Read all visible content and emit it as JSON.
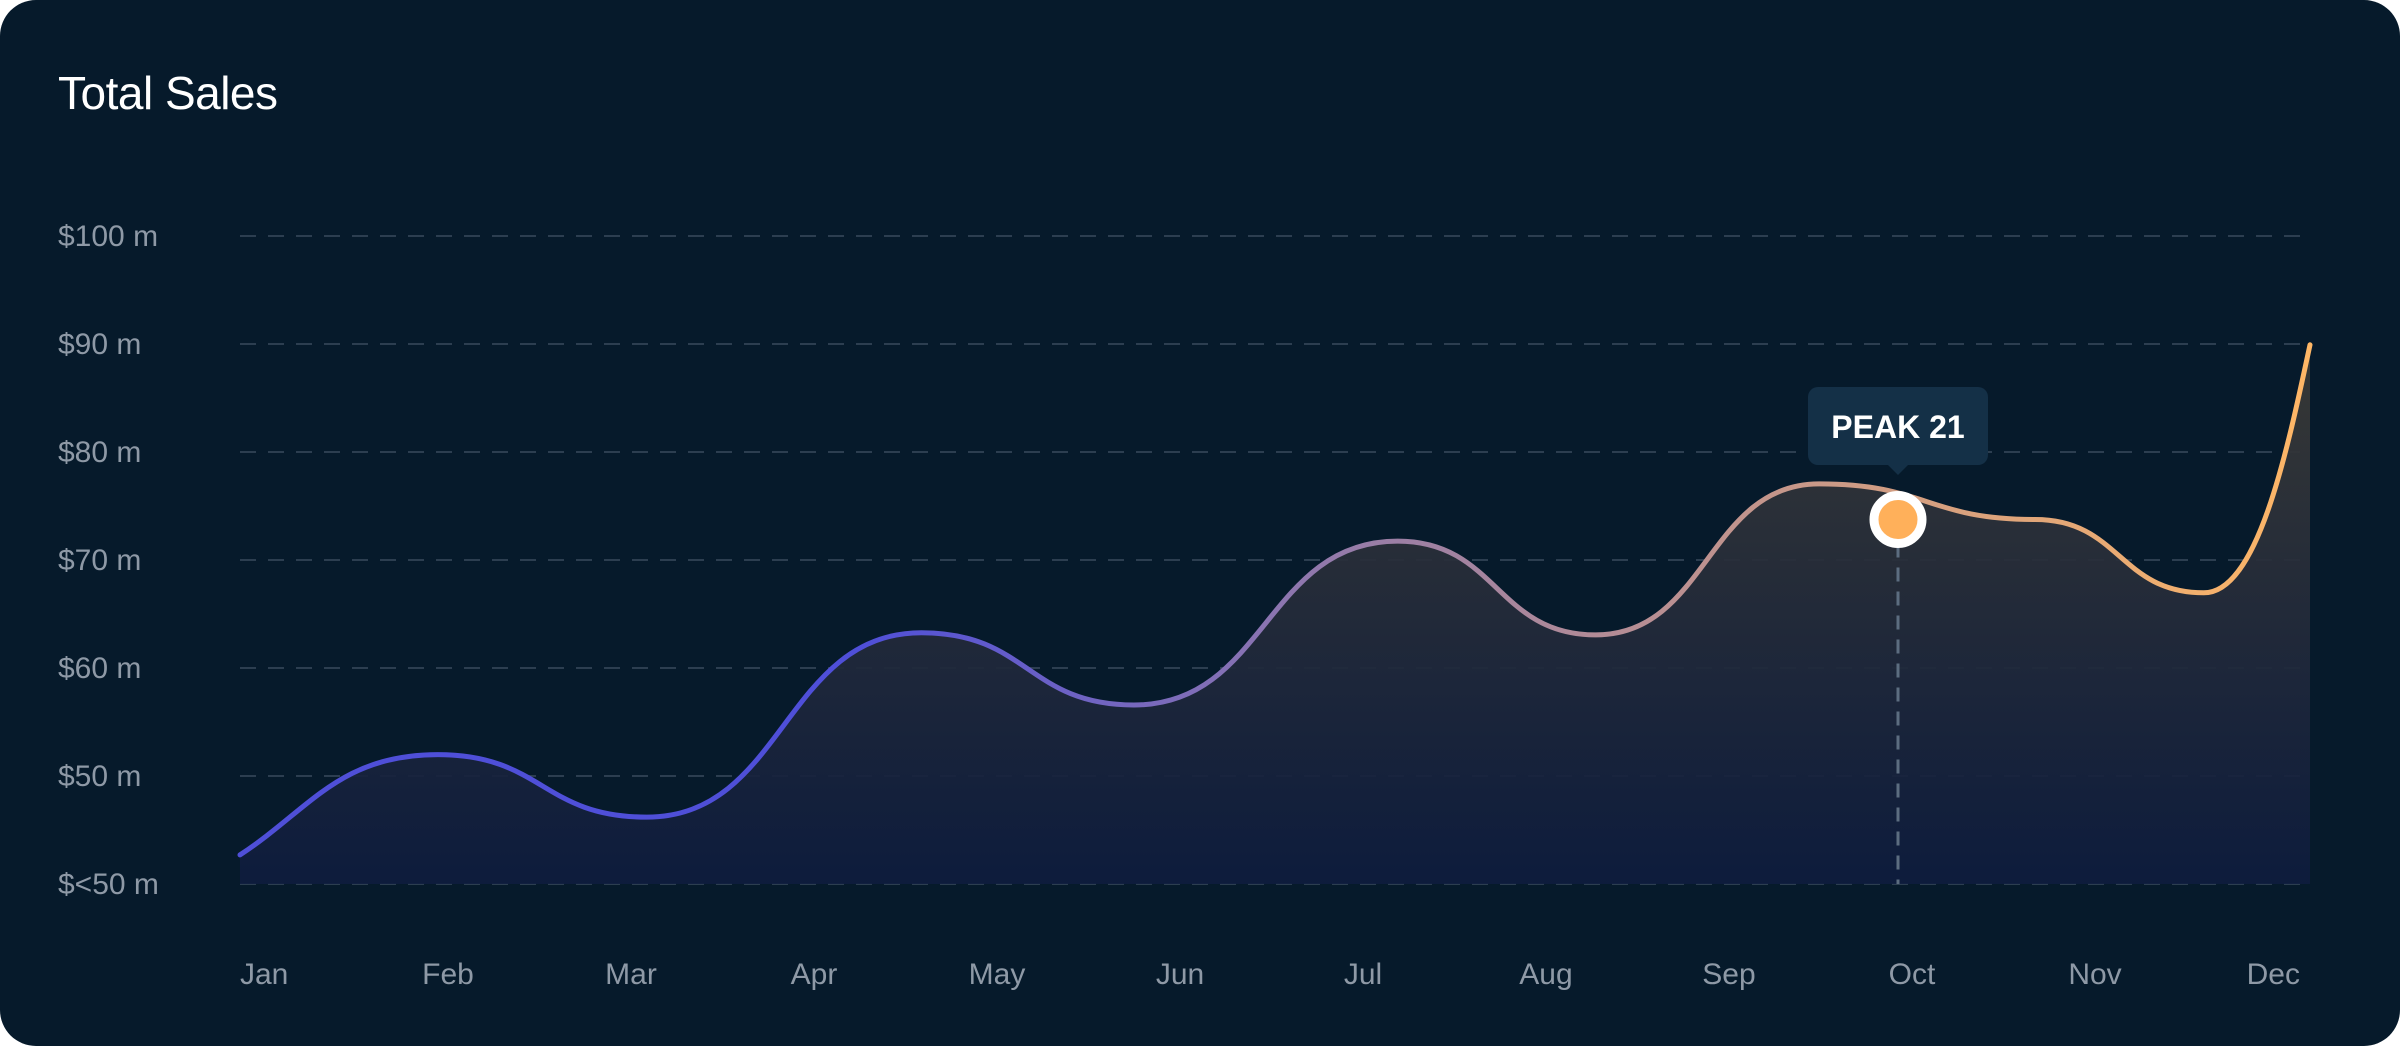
{
  "title": "Total Sales",
  "colors": {
    "background": "#061a2b",
    "line_start": "#4f4fd8",
    "line_mid": "#9a7ea6",
    "line_end": "#ffb766",
    "grid": "#2c3e50",
    "tooltip_bg": "#143047",
    "marker_fill": "#ffb05a",
    "marker_ring": "#ffffff"
  },
  "chart_data": {
    "type": "line",
    "title": "Total Sales",
    "xlabel": "",
    "ylabel": "",
    "categories": [
      "Jan",
      "Feb",
      "Mar",
      "Apr",
      "May",
      "Jun",
      "Jul",
      "Aug",
      "Sep",
      "Oct",
      "Nov",
      "Dec"
    ],
    "y_tick_labels": [
      "$<50 m",
      "$50 m",
      "$60 m",
      "$70 m",
      "$80 m",
      "$90 m",
      "$100 m"
    ],
    "y_tick_values": [
      40,
      50,
      60,
      70,
      80,
      90,
      100
    ],
    "ylim": [
      40,
      100
    ],
    "series": [
      {
        "x": [
          0,
          1.08,
          2.22,
          3.72,
          4.88,
          6.32,
          7.4,
          8.62,
          9.8,
          10.72,
          11.3
        ],
        "values": [
          42.7,
          52.0,
          46.2,
          63.3,
          56.6,
          71.8,
          63.1,
          77.1,
          73.8,
          67.0,
          90.0
        ]
      }
    ],
    "highlight": {
      "label": "PEAK 21",
      "category": "Oct",
      "x": 9.6,
      "value": 73.8
    },
    "grid": true,
    "area_fill": true
  }
}
